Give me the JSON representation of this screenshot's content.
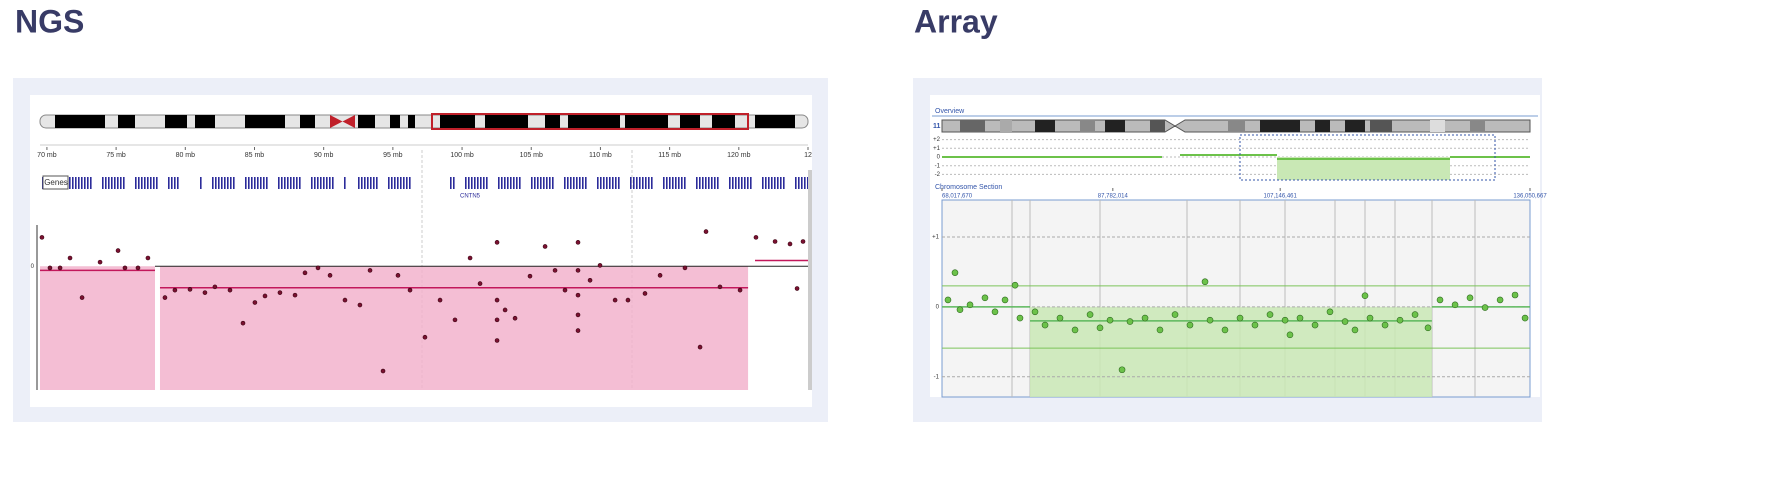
{
  "chart_data": [
    {
      "type": "scatter",
      "title": "NGS",
      "xlim": [
        69.5,
        125
      ],
      "ylim": [
        -1.5,
        0.5
      ],
      "xticks": [
        {
          "value": 70,
          "label": "70 mb"
        },
        {
          "value": 75,
          "label": "75 mb"
        },
        {
          "value": 80,
          "label": "80 mb"
        },
        {
          "value": 85,
          "label": "85 mb"
        },
        {
          "value": 90,
          "label": "90 mb"
        },
        {
          "value": 95,
          "label": "95 mb"
        },
        {
          "value": 100,
          "label": "100 mb"
        },
        {
          "value": 105,
          "label": "105 mb"
        },
        {
          "value": 110,
          "label": "110 mb"
        },
        {
          "value": 115,
          "label": "115 mb"
        },
        {
          "value": 120,
          "label": "120 mb"
        },
        {
          "value": 125,
          "label": "12"
        }
      ],
      "yticks": [
        0
      ],
      "genes_label": "Genes",
      "gene_names": [
        "CNTN5"
      ],
      "segments": [
        {
          "start": 69.5,
          "end": 77.81,
          "value": -0.05
        },
        {
          "start": 78.17,
          "end": 120.67,
          "value": -0.26
        },
        {
          "start": 121.17,
          "end": 125,
          "value": 0.07
        }
      ],
      "series": [
        {
          "color": "#7a1030",
          "x": [
            69.64,
            70.22,
            70.95,
            71.67,
            72.54,
            73.84,
            75.14,
            75.64,
            76.58,
            77.3,
            78.53,
            79.25,
            80.34,
            81.42,
            82.14,
            83.23,
            84.17,
            85.03,
            85.76,
            86.84,
            87.93,
            88.65,
            89.59,
            90.46,
            91.54,
            92.62,
            93.35,
            94.29,
            95.37,
            96.24,
            97.32,
            98.41,
            99.49,
            100.58,
            101.3,
            102.53,
            102.53,
            102.53,
            102.53,
            103.11,
            103.83,
            104.91,
            106.0,
            106.72,
            107.44,
            108.38,
            108.38,
            108.38,
            108.38,
            108.38,
            109.25,
            109.97,
            111.06,
            111.99,
            113.22,
            114.31,
            116.11,
            117.2,
            117.63,
            118.64,
            120.09,
            121.24,
            122.62,
            123.7,
            124.21,
            124.64
          ],
          "values": [
            0.35,
            -0.02,
            -0.02,
            0.1,
            -0.38,
            0.05,
            0.19,
            -0.02,
            -0.02,
            0.1,
            -0.38,
            -0.29,
            -0.28,
            -0.32,
            -0.25,
            -0.29,
            -0.69,
            -0.44,
            -0.36,
            -0.32,
            -0.35,
            -0.08,
            -0.02,
            -0.11,
            -0.41,
            -0.47,
            -0.05,
            -1.27,
            -0.11,
            -0.29,
            -0.86,
            -0.41,
            -0.65,
            0.1,
            -0.21,
            0.29,
            -0.41,
            -0.65,
            -0.9,
            -0.53,
            -0.63,
            -0.12,
            0.24,
            -0.05,
            -0.29,
            0.29,
            -0.05,
            -0.35,
            -0.59,
            -0.78,
            -0.17,
            0.01,
            -0.41,
            -0.41,
            -0.33,
            -0.11,
            -0.02,
            -0.98,
            0.42,
            -0.25,
            -0.29,
            0.35,
            0.3,
            0.27,
            -0.27,
            0.3
          ]
        }
      ]
    },
    {
      "type": "scatter",
      "title": "Array",
      "overview_label": "Overview",
      "section_label": "Chromosome Section",
      "chromosome": "11",
      "overview_yticks": [
        {
          "value": 2,
          "label": "+2"
        },
        {
          "value": 1,
          "label": "+1"
        },
        0,
        -1,
        -2
      ],
      "xlim": [
        68017670,
        136050667
      ],
      "ylim": [
        -1.29,
        1.53
      ],
      "xticks": [
        {
          "value": 68017670,
          "label": "68,017,670"
        },
        {
          "value": 87782014,
          "label": "87,782,014"
        },
        {
          "value": 107146461,
          "label": "107,146,461"
        },
        {
          "value": 136050667,
          "label": "136,050,667"
        }
      ],
      "yticks": [
        {
          "value": 1,
          "label": "+1"
        },
        0,
        -1
      ],
      "segments": [
        {
          "start": 68017670,
          "end": 78200000,
          "value": 0
        },
        {
          "start": 78200000,
          "end": 124700000,
          "value": -0.2
        },
        {
          "start": 124700000,
          "end": 136050667,
          "value": 0
        }
      ],
      "series": [
        {
          "color": "#6cc24a",
          "x": [
            68710000,
            69520000,
            70100000,
            71260000,
            72990000,
            74150000,
            75310000,
            76470000,
            77040000,
            78780000,
            79940000,
            81670000,
            83410000,
            85150000,
            86300000,
            87460000,
            88850000,
            89770000,
            91510000,
            93240000,
            94980000,
            96710000,
            98450000,
            99030000,
            100760000,
            102500000,
            104230000,
            105970000,
            107710000,
            108280000,
            109440000,
            111180000,
            112910000,
            114650000,
            115800000,
            116960000,
            117540000,
            119280000,
            121010000,
            122750000,
            124250000,
            125640000,
            127380000,
            129110000,
            130850000,
            132590000,
            134320000,
            135480000
          ],
          "values": [
            0.1,
            0.49,
            -0.04,
            0.03,
            0.13,
            -0.07,
            0.1,
            0.31,
            -0.16,
            -0.07,
            -0.26,
            -0.16,
            -0.33,
            -0.11,
            -0.3,
            -0.19,
            -0.9,
            -0.21,
            -0.16,
            -0.33,
            -0.11,
            -0.26,
            0.36,
            -0.19,
            -0.33,
            -0.16,
            -0.26,
            -0.11,
            -0.19,
            -0.4,
            -0.16,
            -0.26,
            -0.07,
            -0.21,
            -0.33,
            0.16,
            -0.16,
            -0.26,
            -0.19,
            -0.11,
            -0.3,
            0.1,
            0.03,
            0.13,
            -0.01,
            0.1,
            0.17,
            -0.16
          ]
        }
      ]
    }
  ]
}
